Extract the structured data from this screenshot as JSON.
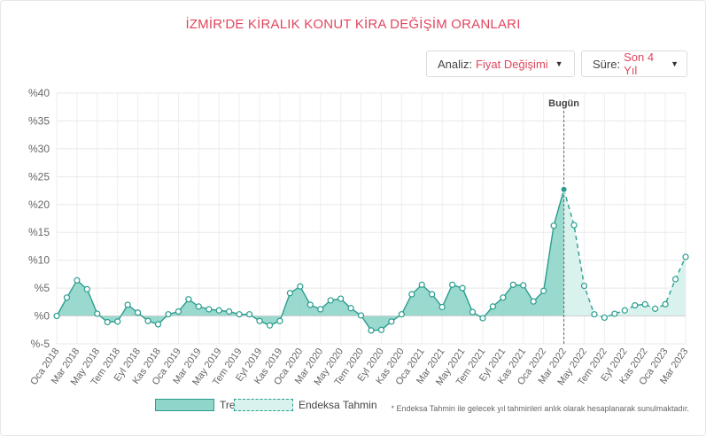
{
  "page": {
    "title": "İZMİR'DE KİRALIK KONUT KİRA DEĞİŞİM ORANLARI",
    "footnote": "* Endeksa Tahmin ile gelecek yıl tahminleri anlık olarak hesaplanarak sunulmaktadır."
  },
  "controls": {
    "analiz": {
      "label": "Analiz:",
      "value": "Fiyat Değişimi"
    },
    "sure": {
      "label": "Süre:",
      "value": "Son 4 Yıl"
    }
  },
  "legend": {
    "trend": "Trend",
    "tahmin": "Endeksa Tahmin"
  },
  "colors": {
    "trend_fill": "#8fd5c9",
    "trend_line": "#2a9d8f",
    "forecast_fill": "#d9f2ee",
    "title": "#e0465e"
  },
  "chart_data": {
    "type": "area",
    "title": "İZMİR'DE KİRALIK KONUT KİRA DEĞİŞİM ORANLARI",
    "ylim": [
      -5,
      40
    ],
    "yticks": [
      "%-5",
      "%0",
      "%5",
      "%10",
      "%15",
      "%20",
      "%25",
      "%30",
      "%35",
      "%40"
    ],
    "x_labels": [
      "Oca 2018",
      "Mar 2018",
      "May 2018",
      "Tem 2018",
      "Eyl 2018",
      "Kas 2018",
      "Oca 2019",
      "Mar 2019",
      "May 2019",
      "Tem 2019",
      "Eyl 2019",
      "Kas 2019",
      "Oca 2020",
      "Mar 2020",
      "May 2020",
      "Tem 2020",
      "Eyl 2020",
      "Kas 2020",
      "Oca 2021",
      "Mar 2021",
      "May 2021",
      "Tem 2021",
      "Eyl 2021",
      "Kas 2021",
      "Oca 2022",
      "Mar 2022",
      "May 2022",
      "Tem 2022",
      "Eyl 2022",
      "Kas 2022",
      "Oca 2023",
      "Mar 2023"
    ],
    "marker_label": "Bugün",
    "marker_at": "Mar 2022",
    "grid": true,
    "series": [
      {
        "name": "Trend",
        "style": "solid",
        "x": [
          "Oca 2018",
          "Şub 2018",
          "Mar 2018",
          "Nis 2018",
          "May 2018",
          "Haz 2018",
          "Tem 2018",
          "Ağu 2018",
          "Eyl 2018",
          "Eki 2018",
          "Kas 2018",
          "Ara 2018",
          "Oca 2019",
          "Şub 2019",
          "Mar 2019",
          "Nis 2019",
          "May 2019",
          "Haz 2019",
          "Tem 2019",
          "Ağu 2019",
          "Eyl 2019",
          "Eki 2019",
          "Kas 2019",
          "Ara 2019",
          "Oca 2020",
          "Şub 2020",
          "Mar 2020",
          "Nis 2020",
          "May 2020",
          "Haz 2020",
          "Tem 2020",
          "Ağu 2020",
          "Eyl 2020",
          "Eki 2020",
          "Kas 2020",
          "Ara 2020",
          "Oca 2021",
          "Şub 2021",
          "Mar 2021",
          "Nis 2021",
          "May 2021",
          "Haz 2021",
          "Tem 2021",
          "Ağu 2021",
          "Eyl 2021",
          "Eki 2021",
          "Kas 2021",
          "Ara 2021",
          "Oca 2022",
          "Şub 2022",
          "Mar 2022"
        ],
        "values": [
          0.0,
          3.3,
          6.4,
          4.8,
          0.4,
          -1.1,
          -1.0,
          2.0,
          0.6,
          -0.9,
          -1.5,
          0.3,
          0.8,
          3.0,
          1.7,
          1.2,
          1.0,
          0.8,
          0.3,
          0.3,
          -0.9,
          -1.7,
          -0.9,
          4.1,
          5.3,
          2.0,
          1.2,
          2.8,
          3.1,
          1.4,
          0.1,
          -2.6,
          -2.5,
          -1.0,
          0.3,
          3.9,
          5.6,
          3.9,
          1.6,
          5.6,
          5.0,
          0.7,
          -0.4,
          1.7,
          3.3,
          5.6,
          5.5,
          2.6,
          4.5,
          16.2,
          22.7
        ]
      },
      {
        "name": "Endeksa Tahmin",
        "style": "dashed",
        "x": [
          "Mar 2022",
          "Nis 2022",
          "May 2022",
          "Haz 2022",
          "Tem 2022",
          "Ağu 2022",
          "Eyl 2022",
          "Eki 2022",
          "Kas 2022",
          "Ara 2022",
          "Oca 2023",
          "Şub 2023",
          "Mar 2023"
        ],
        "values": [
          22.7,
          16.3,
          5.4,
          0.3,
          -0.3,
          0.4,
          1.0,
          1.9,
          2.1,
          1.3,
          2.1,
          6.6,
          10.6
        ]
      }
    ]
  }
}
